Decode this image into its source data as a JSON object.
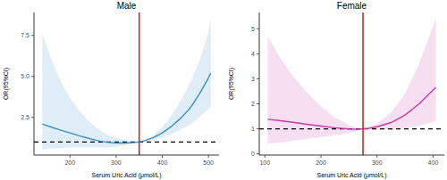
{
  "chart_data": [
    {
      "type": "line",
      "title": "Male",
      "x_label": "Serum Uric Acid (μmol/L)",
      "y_label": "OR(95%CI)",
      "x": [
        140,
        160,
        180,
        200,
        220,
        240,
        260,
        280,
        300,
        320,
        340,
        350,
        360,
        380,
        400,
        420,
        440,
        460,
        480,
        500,
        505
      ],
      "values": [
        2.1,
        1.9,
        1.72,
        1.55,
        1.38,
        1.22,
        1.08,
        0.98,
        0.93,
        0.93,
        0.97,
        1.0,
        1.06,
        1.25,
        1.55,
        1.95,
        2.45,
        3.05,
        3.9,
        4.9,
        5.2
      ],
      "ci_upper": [
        7.6,
        6.0,
        4.7,
        3.7,
        2.9,
        2.3,
        1.8,
        1.45,
        1.25,
        1.12,
        1.03,
        1.0,
        1.1,
        1.4,
        1.9,
        2.6,
        3.5,
        4.6,
        5.9,
        7.7,
        8.6
      ],
      "ci_lower": [
        0.55,
        0.6,
        0.63,
        0.66,
        0.68,
        0.68,
        0.67,
        0.66,
        0.7,
        0.78,
        0.92,
        1.0,
        1.03,
        1.12,
        1.28,
        1.48,
        1.75,
        2.05,
        2.5,
        3.0,
        3.1
      ],
      "color": "#3b8fc9",
      "vline_x": 350,
      "hline_y": 1,
      "xlim": [
        122,
        523
      ],
      "xticks": [
        200,
        300,
        400,
        500
      ],
      "ylim": [
        0.2,
        8.9
      ],
      "yticks": [
        2.5,
        {
          "value": 5,
          "label": "5.0"
        },
        7.5
      ]
    },
    {
      "type": "line",
      "title": "Female",
      "x_label": "Serum Uric Acid (μmol/L)",
      "y_label": "OR(95%CI)",
      "x": [
        105,
        125,
        150,
        175,
        200,
        225,
        250,
        265,
        275,
        285,
        300,
        325,
        350,
        375,
        400,
        405
      ],
      "values": [
        1.38,
        1.33,
        1.26,
        1.18,
        1.11,
        1.04,
        0.99,
        0.98,
        1.0,
        1.02,
        1.08,
        1.25,
        1.55,
        2.0,
        2.55,
        2.65
      ],
      "ci_upper": [
        4.7,
        3.9,
        3.1,
        2.45,
        1.9,
        1.45,
        1.15,
        1.03,
        1.0,
        1.04,
        1.2,
        1.65,
        2.4,
        3.6,
        5.1,
        5.4
      ],
      "ci_lower": [
        0.4,
        0.45,
        0.52,
        0.6,
        0.66,
        0.74,
        0.84,
        0.93,
        1.0,
        1.0,
        0.97,
        0.96,
        1.0,
        1.12,
        1.28,
        1.3
      ],
      "color": "#c93aa9",
      "vline_x": 275,
      "hline_y": 1,
      "xlim": [
        90,
        420
      ],
      "xticks": [
        100,
        200,
        300,
        400
      ],
      "ylim": [
        -0.05,
        5.65
      ],
      "yticks": [
        0,
        1,
        2,
        3,
        4,
        5
      ]
    }
  ]
}
